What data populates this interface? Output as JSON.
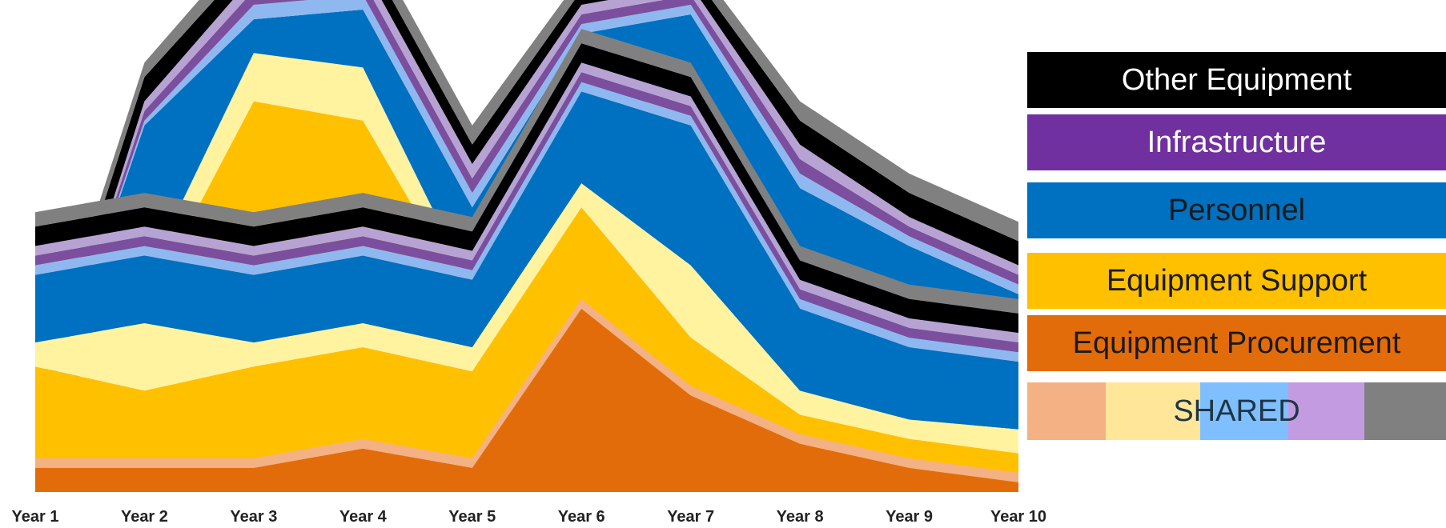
{
  "chart_data": {
    "type": "area",
    "subtype": "stacked",
    "categories": [
      "Year 1",
      "Year 2",
      "Year 3",
      "Year 4",
      "Year 5",
      "Year 6",
      "Year 7",
      "Year 8",
      "Year 9",
      "Year 10"
    ],
    "ylim": [
      0,
      100
    ],
    "grid": false,
    "legend_position": "right",
    "layers_back": [
      {
        "color": "#F4B183",
        "values": [
          10,
          22,
          36,
          33,
          28,
          72,
          52,
          16,
          6,
          3
        ]
      },
      {
        "color": "#FFC000",
        "values": [
          0,
          16,
          45,
          44,
          10,
          0,
          22,
          14,
          8,
          5
        ]
      },
      {
        "color": "#FFF3A0",
        "values": [
          0,
          6,
          10,
          11,
          4,
          7,
          8,
          5,
          4,
          3
        ]
      },
      {
        "color": "#0070C0",
        "values": [
          0,
          32,
          7,
          12,
          17,
          16,
          17,
          28,
          33,
          30
        ]
      },
      {
        "color": "#8FB8F0",
        "values": [
          0,
          1,
          3,
          3,
          3,
          2,
          2,
          3,
          2,
          2
        ]
      },
      {
        "color": "#7B4F9D",
        "values": [
          0,
          2,
          3,
          3,
          3,
          2,
          2,
          3,
          2,
          2
        ]
      },
      {
        "color": "#B7A3D3",
        "values": [
          0,
          2,
          3,
          3,
          3,
          2,
          2,
          3,
          2,
          2
        ]
      },
      {
        "color": "#000000",
        "values": [
          6,
          5,
          4,
          4,
          4,
          3,
          3,
          5,
          5,
          5
        ]
      },
      {
        "color": "#808080",
        "values": [
          3,
          3,
          4,
          4,
          4,
          3,
          3,
          4,
          4,
          4
        ]
      }
    ],
    "layers_front": [
      {
        "color": "#E36C0A",
        "values": [
          5,
          5,
          5,
          9,
          5,
          38,
          20,
          10,
          5,
          2
        ]
      },
      {
        "color": "#F4B183",
        "values": [
          2,
          2,
          2,
          2,
          2,
          2,
          2,
          2,
          2,
          2
        ]
      },
      {
        "color": "#FFC000",
        "values": [
          19,
          14,
          19,
          19,
          18,
          19,
          10,
          4,
          4,
          4
        ]
      },
      {
        "color": "#FFF3A0",
        "values": [
          5,
          14,
          5,
          5,
          5,
          5,
          15,
          5,
          4,
          5
        ]
      },
      {
        "color": "#0070C0",
        "values": [
          14,
          14,
          14,
          14,
          14,
          19,
          29,
          17,
          15,
          14
        ]
      },
      {
        "color": "#8FB8F0",
        "values": [
          2,
          2,
          2,
          2,
          2,
          2,
          2,
          2,
          2,
          2
        ]
      },
      {
        "color": "#7B4F9D",
        "values": [
          2,
          2,
          2,
          2,
          2,
          2,
          2,
          2,
          2,
          2
        ]
      },
      {
        "color": "#B7A3D3",
        "values": [
          2,
          2,
          2,
          2,
          2,
          2,
          2,
          2,
          2,
          2
        ]
      },
      {
        "color": "#000000",
        "values": [
          4,
          4,
          4,
          4,
          4,
          4,
          4,
          4,
          4,
          4
        ]
      },
      {
        "color": "#808080",
        "values": [
          3,
          3,
          3,
          3,
          3,
          3,
          3,
          3,
          3,
          3
        ]
      }
    ],
    "legend": [
      {
        "label": "Other Equipment",
        "color": "#000000",
        "text_color": "#ffffff"
      },
      {
        "label": "Infrastructure",
        "color": "#7030A0",
        "text_color": "#ffffff"
      },
      {
        "label": "Personnel",
        "color": "#0070C0",
        "text_color": "#1a1a1a"
      },
      {
        "label": "Equipment Support",
        "color": "#FFC000",
        "text_color": "#1a1a1a"
      },
      {
        "label": "Equipment Procurement",
        "color": "#E36C0A",
        "text_color": "#1a1a1a"
      }
    ],
    "shared": {
      "label": "SHARED",
      "colors": [
        "#F4B183",
        "#FFE699",
        "#7FBFFF",
        "#C39BE0",
        "#808080"
      ]
    }
  }
}
